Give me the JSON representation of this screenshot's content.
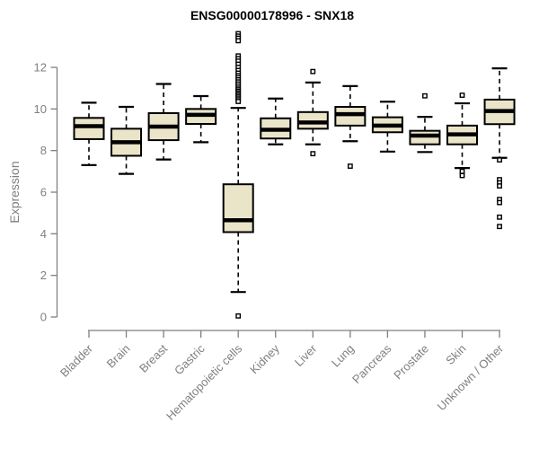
{
  "chart_data": {
    "type": "boxplot",
    "title": "ENSG00000178996 - SNX18",
    "ylabel": "Expression",
    "xlabel": "",
    "ylim": [
      0,
      12
    ],
    "yticks": [
      0,
      2,
      4,
      6,
      8,
      10,
      12
    ],
    "grid": false,
    "legend": null,
    "categories": [
      "Bladder",
      "Brain",
      "Breast",
      "Gastric",
      "Hematopoietic cells",
      "Kidney",
      "Liver",
      "Lung",
      "Pancreas",
      "Prostate",
      "Skin",
      "Unknown / Other"
    ],
    "boxes": [
      {
        "category": "Bladder",
        "whisker_low": 7.3,
        "q1": 8.55,
        "median": 9.17,
        "q3": 9.57,
        "whisker_high": 10.3,
        "outliers": []
      },
      {
        "category": "Brain",
        "whisker_low": 6.88,
        "q1": 7.75,
        "median": 8.4,
        "q3": 9.05,
        "whisker_high": 10.1,
        "outliers": []
      },
      {
        "category": "Breast",
        "whisker_low": 7.57,
        "q1": 8.5,
        "median": 9.15,
        "q3": 9.8,
        "whisker_high": 11.2,
        "outliers": []
      },
      {
        "category": "Gastric",
        "whisker_low": 8.4,
        "q1": 9.28,
        "median": 9.72,
        "q3": 10.0,
        "whisker_high": 10.62,
        "outliers": []
      },
      {
        "category": "Hematopoietic cells",
        "whisker_low": 1.2,
        "q1": 4.08,
        "median": 4.65,
        "q3": 6.38,
        "whisker_high": 10.05,
        "outliers": [
          13.62,
          13.5,
          13.4,
          13.28,
          12.55,
          12.42,
          12.3,
          12.15,
          12.0,
          11.85,
          11.72,
          11.6,
          11.5,
          11.4,
          11.3,
          11.2,
          11.1,
          11.0,
          10.92,
          10.84,
          10.76,
          10.68,
          10.6,
          10.52,
          10.44,
          10.36,
          0.05
        ]
      },
      {
        "category": "Kidney",
        "whisker_low": 8.3,
        "q1": 8.58,
        "median": 9.0,
        "q3": 9.55,
        "whisker_high": 10.5,
        "outliers": []
      },
      {
        "category": "Liver",
        "whisker_low": 8.3,
        "q1": 9.05,
        "median": 9.35,
        "q3": 9.85,
        "whisker_high": 11.27,
        "outliers": [
          11.8,
          7.85
        ]
      },
      {
        "category": "Lung",
        "whisker_low": 8.45,
        "q1": 9.2,
        "median": 9.75,
        "q3": 10.1,
        "whisker_high": 11.1,
        "outliers": [
          7.25
        ]
      },
      {
        "category": "Pancreas",
        "whisker_low": 7.95,
        "q1": 8.88,
        "median": 9.2,
        "q3": 9.6,
        "whisker_high": 10.35,
        "outliers": []
      },
      {
        "category": "Prostate",
        "whisker_low": 7.93,
        "q1": 8.3,
        "median": 8.72,
        "q3": 8.95,
        "whisker_high": 9.62,
        "outliers": [
          10.63
        ]
      },
      {
        "category": "Skin",
        "whisker_low": 7.16,
        "q1": 8.3,
        "median": 8.78,
        "q3": 9.2,
        "whisker_high": 10.27,
        "outliers": [
          10.66,
          7.0,
          6.8
        ]
      },
      {
        "category": "Unknown / Other",
        "whisker_low": 7.65,
        "q1": 9.27,
        "median": 9.9,
        "q3": 10.45,
        "whisker_high": 11.95,
        "outliers": [
          7.55,
          6.6,
          6.45,
          6.3,
          5.65,
          5.5,
          4.8,
          4.35
        ]
      }
    ]
  },
  "colors": {
    "background": "#ffffff",
    "box_fill": "#eae4c9",
    "box_border": "#000000",
    "median": "#000000",
    "whisker": "#000000",
    "outlier_stroke": "#000000",
    "outlier_fill": "#ffffff",
    "axis": "#7f7f7f",
    "tick_label": "#7f7f7f",
    "title_text": "#000000"
  }
}
